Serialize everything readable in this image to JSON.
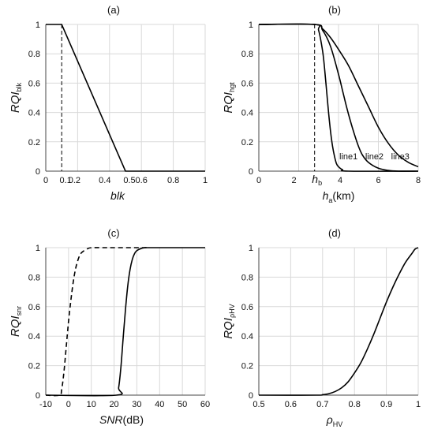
{
  "chart_data": [
    {
      "type": "line",
      "label": "(a)",
      "xlabel": "blk",
      "ylabel": {
        "main": "RQI",
        "sub": "blk"
      },
      "xlim": [
        0,
        1
      ],
      "ylim": [
        0,
        1
      ],
      "xticks": [
        0,
        0.2,
        0.4,
        0.6,
        0.8,
        1
      ],
      "xtick_labels": [
        "0",
        "0.2",
        "0.4",
        "0.6",
        "0.8",
        "1"
      ],
      "extra_xticks": [
        {
          "value": 0.1,
          "label": "0.1"
        },
        {
          "value": 0.5,
          "label": "0.5"
        }
      ],
      "yticks": [
        0,
        0.2,
        0.4,
        0.6,
        0.8,
        1
      ],
      "ytick_labels": [
        "0",
        "0.2",
        "0.4",
        "0.6",
        "0.8",
        "1"
      ],
      "grid": true,
      "series": [
        {
          "style": "solid",
          "x": [
            0,
            0.1,
            0.5,
            1
          ],
          "y": [
            1,
            1,
            0,
            0
          ]
        }
      ],
      "vlines": [
        {
          "x": 0.1,
          "style": "dashed"
        }
      ]
    },
    {
      "type": "line",
      "label": "(b)",
      "xlabel": {
        "main": "h",
        "sub": "a",
        "unit": "(km)"
      },
      "ylabel": {
        "main": "RQI",
        "sub": "hgt"
      },
      "xlim": [
        0,
        8
      ],
      "ylim": [
        0,
        1
      ],
      "xticks": [
        0,
        2,
        4,
        6,
        8
      ],
      "xtick_labels": [
        "0",
        "2",
        "4",
        "6",
        "8"
      ],
      "extra_xticks": [
        {
          "value": 2.8,
          "label_main": "h",
          "label_sub": "b"
        }
      ],
      "yticks": [
        0,
        0.2,
        0.4,
        0.6,
        0.8,
        1
      ],
      "ytick_labels": [
        "0",
        "0.2",
        "0.4",
        "0.6",
        "0.8",
        "1"
      ],
      "grid": true,
      "series": [
        {
          "name": "line1",
          "style": "solid",
          "x": [
            0,
            2.8,
            3.0,
            3.2,
            3.3,
            3.4,
            3.5,
            3.6,
            3.7,
            3.8,
            3.9,
            4.0,
            4.2,
            4.5,
            8
          ],
          "y": [
            1,
            1,
            0.96,
            0.82,
            0.7,
            0.55,
            0.4,
            0.27,
            0.17,
            0.1,
            0.05,
            0.03,
            0.01,
            0,
            0
          ]
        },
        {
          "name": "line2",
          "style": "solid",
          "x": [
            0,
            2.8,
            3.2,
            3.6,
            4.0,
            4.2,
            4.4,
            4.6,
            4.8,
            5.0,
            5.2,
            5.5,
            6.0,
            6.5,
            7.0,
            8
          ],
          "y": [
            1,
            1,
            0.96,
            0.85,
            0.66,
            0.55,
            0.44,
            0.34,
            0.25,
            0.17,
            0.11,
            0.06,
            0.02,
            0.005,
            0,
            0
          ]
        },
        {
          "name": "line3",
          "style": "solid",
          "x": [
            0,
            2.8,
            3.2,
            3.6,
            4.0,
            4.5,
            5.0,
            5.5,
            6.0,
            6.5,
            7.0,
            7.5,
            8.0
          ],
          "y": [
            1,
            1,
            0.97,
            0.91,
            0.83,
            0.72,
            0.58,
            0.44,
            0.3,
            0.19,
            0.11,
            0.06,
            0.03
          ]
        }
      ],
      "vlines": [
        {
          "x": 2.8,
          "style": "dashed"
        }
      ]
    },
    {
      "type": "line",
      "label": "(c)",
      "xlabel": {
        "main": "SNR",
        "unit": "(dB)"
      },
      "ylabel": {
        "main": "RQI",
        "sub": "snr"
      },
      "xlim": [
        -10,
        60
      ],
      "ylim": [
        0,
        1
      ],
      "xticks": [
        -10,
        0,
        10,
        20,
        30,
        40,
        50,
        60
      ],
      "xtick_labels": [
        "-10",
        "0",
        "10",
        "20",
        "30",
        "40",
        "50",
        "60"
      ],
      "yticks": [
        0,
        0.2,
        0.4,
        0.6,
        0.8,
        1
      ],
      "ytick_labels": [
        "0",
        "0.2",
        "0.4",
        "0.6",
        "0.8",
        "1"
      ],
      "grid": true,
      "series": [
        {
          "style": "dashed",
          "x": [
            -10,
            -4,
            -3,
            -2,
            -1,
            0,
            1,
            2,
            3,
            4,
            5,
            6,
            8,
            10,
            15,
            35
          ],
          "y": [
            0,
            0,
            0.04,
            0.16,
            0.33,
            0.5,
            0.64,
            0.76,
            0.85,
            0.91,
            0.95,
            0.97,
            0.99,
            1,
            1,
            1
          ]
        },
        {
          "style": "solid",
          "x": [
            -10,
            21,
            22,
            23,
            24,
            25,
            26,
            27,
            28,
            29,
            30,
            32,
            34,
            36,
            60
          ],
          "y": [
            0,
            0,
            0.05,
            0.19,
            0.39,
            0.58,
            0.74,
            0.85,
            0.92,
            0.96,
            0.98,
            0.995,
            1,
            1,
            1
          ]
        }
      ]
    },
    {
      "type": "line",
      "label": "(d)",
      "xlabel": {
        "main": "ρ",
        "sub": "HV"
      },
      "ylabel": {
        "main": "RQI",
        "sub": "ρHV"
      },
      "xlim": [
        0.5,
        1
      ],
      "ylim": [
        0,
        1
      ],
      "xticks": [
        0.5,
        0.6,
        0.7,
        0.8,
        0.9,
        1
      ],
      "xtick_labels": [
        "0.5",
        "0.6",
        "0.7",
        "0.8",
        "0.9",
        "1"
      ],
      "yticks": [
        0,
        0.2,
        0.4,
        0.6,
        0.8,
        1
      ],
      "ytick_labels": [
        "0",
        "0.2",
        "0.4",
        "0.6",
        "0.8",
        "1"
      ],
      "grid": true,
      "series": [
        {
          "style": "solid",
          "x": [
            0.5,
            0.68,
            0.7,
            0.72,
            0.74,
            0.76,
            0.78,
            0.8,
            0.82,
            0.84,
            0.86,
            0.88,
            0.9,
            0.92,
            0.94,
            0.96,
            0.98,
            0.99,
            1.0
          ],
          "y": [
            0,
            0,
            0.003,
            0.01,
            0.025,
            0.05,
            0.09,
            0.15,
            0.22,
            0.31,
            0.41,
            0.52,
            0.63,
            0.73,
            0.82,
            0.9,
            0.96,
            0.99,
            1
          ]
        }
      ]
    }
  ]
}
